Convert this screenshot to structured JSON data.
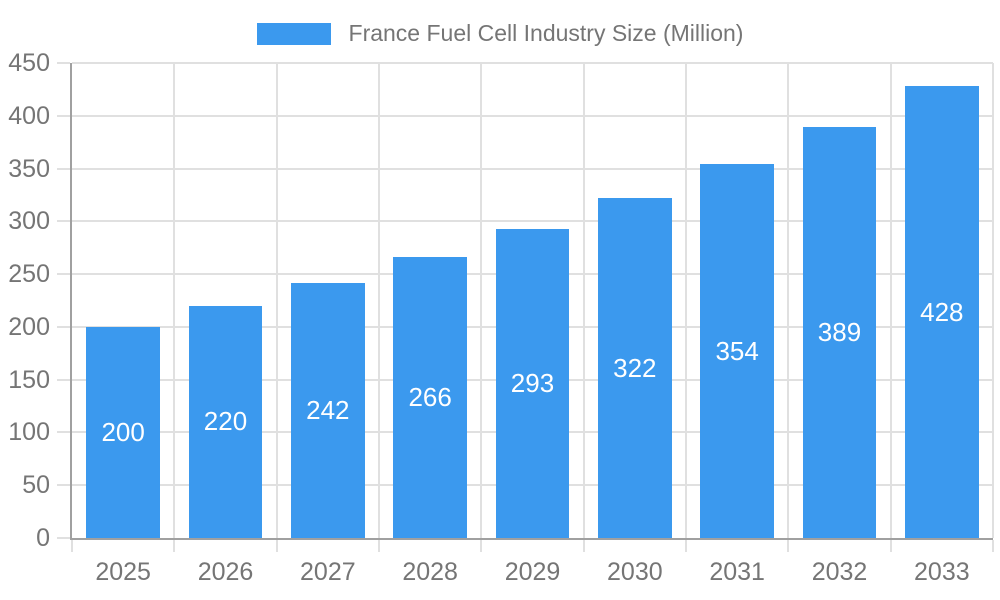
{
  "legend": {
    "label": "France Fuel Cell Industry Size (Million)"
  },
  "chart_data": {
    "type": "bar",
    "title": "France Fuel Cell Industry Size (Million)",
    "categories": [
      "2025",
      "2026",
      "2027",
      "2028",
      "2029",
      "2030",
      "2031",
      "2032",
      "2033"
    ],
    "values": [
      200,
      220,
      242,
      266,
      293,
      322,
      354,
      389,
      428
    ],
    "xlabel": "",
    "ylabel": "",
    "ylim": [
      0,
      450
    ],
    "ytick_step": 50,
    "yticks": [
      0,
      50,
      100,
      150,
      200,
      250,
      300,
      350,
      400,
      450
    ],
    "grid": true,
    "legend_position": "top-center",
    "value_labels": "inside-center",
    "colors": {
      "bar": "#3B99EE",
      "bar_label": "#FFFFFF",
      "axis_text": "#757575",
      "axis_line": "#A0A0A0",
      "grid_line": "#E0E0E0"
    }
  }
}
